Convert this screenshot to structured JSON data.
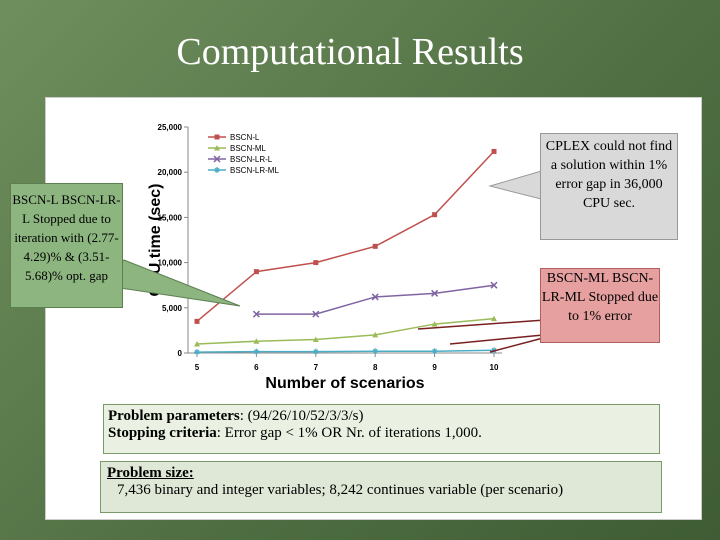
{
  "title": "Computational Results",
  "chart_data": {
    "type": "line",
    "x_label": "Number of scenarios",
    "y_label": "CPU time (sec)",
    "x": [
      5,
      6,
      7,
      8,
      9,
      10
    ],
    "xlim": [
      5,
      10
    ],
    "xticks": [
      5,
      6,
      7,
      8,
      9,
      10
    ],
    "ylim": [
      0,
      25000
    ],
    "yticks": [
      0,
      {
        "value": 5000,
        "label": "5,000"
      },
      {
        "value": 10000,
        "label": "10,000"
      },
      {
        "value": 15000,
        "label": "15,000"
      },
      {
        "value": 20000,
        "label": "20,000"
      },
      {
        "value": 25000,
        "label": "25,000"
      }
    ],
    "series": [
      {
        "name": "BSCN-L",
        "color": "#c0504d",
        "marker": "square",
        "values": [
          3500,
          9000,
          10000,
          11800,
          15300,
          22300
        ]
      },
      {
        "name": "BSCN-ML",
        "color": "#9bbb59",
        "marker": "triangle",
        "values": [
          1000,
          1300,
          1500,
          2000,
          3200,
          3800
        ]
      },
      {
        "name": "BSCN-LR-L",
        "color": "#8064a2",
        "marker": "x",
        "values": [
          null,
          4300,
          4300,
          6200,
          6600,
          7500
        ]
      },
      {
        "name": "BSCN-LR-ML",
        "color": "#4bacc6",
        "marker": "star",
        "values": [
          100,
          150,
          150,
          200,
          200,
          300
        ]
      }
    ]
  },
  "callouts": {
    "left": "BSCN-L BSCN-LR-L Stopped due to iteration with (2.77-4.29)% & (3.51-5.68)% opt. gap",
    "cplex": "CPLEX could not find a solution within 1% error gap in 36,000 CPU sec.",
    "ml": "BSCN-ML BSCN-LR-ML Stopped due to 1% error"
  },
  "parameters": [
    {
      "label": "Problem parameters",
      "text": ": (94/26/10/52/3/3/s)"
    },
    {
      "label": "Stopping criteria",
      "text": ": Error gap < 1% OR Nr. of iterations 1,000."
    }
  ],
  "problem_size": {
    "label": "Problem size:",
    "text": "7,436 binary and integer variables; 8,242 continues variable (per scenario)"
  }
}
